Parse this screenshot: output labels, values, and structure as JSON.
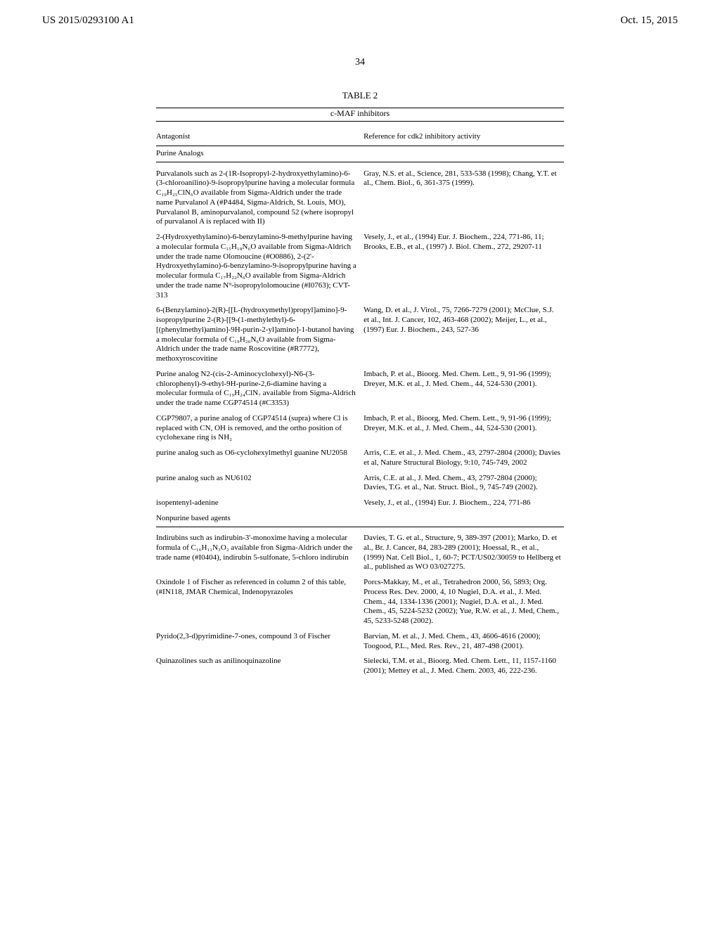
{
  "header": {
    "pub_number": "US 2015/0293100 A1",
    "date": "Oct. 15, 2015"
  },
  "page_number": "34",
  "table": {
    "label": "TABLE 2",
    "subtitle": "c-MAF inhibitors",
    "col_headers": {
      "antagonist": "Antagonist",
      "reference": "Reference for cdk2 inhibitory activity"
    },
    "sections": [
      {
        "title": "Purine Analogs",
        "rows": [
          {
            "a": "Purvalanols such as 2-(1R-Isopropyl-2-hydroxyethylamino)-6-(3-chloroanilino)-9-isopropylpurine having a molecular formula C₁₉H₂₅ClN₆O available from Sigma-Aldrich under the trade name Purvalanol A (#P4484, Sigma-Aldrich, St. Louis, MO), Purvalanol B, aminopurvalanol, compound 52 (where isopropyl of purvalanol A is replaced with II)",
            "r": "Gray, N.S. et al., Science, 281, 533-538 (1998); Chang, Y.T. et al., Chem. Biol., 6, 361-375 (1999)."
          },
          {
            "a": "2-(Hydroxyethylamino)-6-benzylamino-9-methylpurine having a molecular formula C₁₅H₁₈N₆O available from Sigma-Aldrich under the trade name Olomoucine (#O0886), 2-(2'-Hydroxyethylamino)-6-benzylamino-9-isopropylpurine having a molecular formula C₁₇H₂₂N₆O available from Sigma-Aldrich under the trade name N⁹-isopropylolomoucine (#I0763); CVT-313",
            "r": "Vesely, J., et al., (1994) Eur. J. Biochem., 224, 771-86, 11; Brooks, E.B., et al., (1997) J. Biol. Chem., 272, 29207-11"
          },
          {
            "a": "6-(Benzylamino)-2(R)-[[L-(hydroxymethyl)propyl]amino]-9-isopropylpurine 2-(R)-[[9-(1-methylethyl)-6-[(phenylmethyl)amino]-9H-purin-2-yl]amino]-1-butanol having a molecular formula of C₁₉H₂₆N₆O available from Sigma-Aldrich under the trade name Roscovitine (#R7772), methoxyroscovitine",
            "r": "Wang, D. et al., J. Virol., 75, 7266-7279 (2001); McClue, S.J. et al., Int. J. Cancer, 102, 463-468 (2002); Meijer, L., et al., (1997) Eur. J. Biochem., 243, 527-36"
          },
          {
            "a": "Purine analog N2-(cis-2-Aminocyclohexyl)-N6-(3-chlorophenyl)-9-ethyl-9H-purine-2,6-diamine having a molecular formula of C₁₉H₂₄ClN₇ available from Sigma-Aldrich under the trade name CGP74514 (#C3353)",
            "r": "Imbach, P. et al., Bioorg. Med. Chem. Lett., 9, 91-96 (1999); Dreyer, M.K. et al., J. Med. Chem., 44, 524-530 (2001)."
          },
          {
            "a": "CGP79807, a purine analog of CGP74514 (supra) where Cl is replaced with CN, OH is removed, and the ortho position of cyclohexane ring is NH₂",
            "r": "Imbach, P. et al., Bioorg, Med. Chem. Lett., 9, 91-96 (1999); Dreyer, M.K. et al., J. Med. Chem., 44, 524-530 (2001)."
          },
          {
            "a": "purine analog such as O6-cyclohexylmethyl guanine NU2058",
            "r": "Arris, C.E. et al., J. Med. Chem., 43, 2797-2804 (2000); Davies et al, Nature Structural Biology, 9:10, 745-749, 2002"
          },
          {
            "a": "purine analog such as NU6102",
            "r": "Arris, C.E. at al., J. Med. Chem., 43, 2797-2804 (2000); Davies, T.G. et al., Nat. Struct. Biol., 9, 745-749 (2002)."
          },
          {
            "a": "isopentenyl-adenine",
            "r": "Vesely, J., et al., (1994) Eur. J. Biochem., 224, 771-86"
          }
        ]
      },
      {
        "title": "Nonpurine based agents",
        "rows": [
          {
            "a": "Indirubins such as indirubin-3'-monoxime having a molecular formula of C₁₆H₁₁N₃O₂ available fron Sigma-Aldrich under the trade name (#I0404), indirubin 5-sulfonate, 5-chloro indirubin",
            "r": "Davies, T. G. et al., Structure, 9, 389-397 (2001); Marko, D. et al., Br. J. Cancer, 84, 283-289 (2001); Hoessal, R., et al., (1999) Nat. Cell Biol., 1, 60-7; PCT/US02/30059 to Hellberg et al., published as WO 03/027275."
          },
          {
            "a": "Oxindole 1 of Fischer as referenced in column 2 of this table, (#IN118, JMAR Chemical, Indenopyrazoles",
            "r": "Porcs-Makkay, M., et al., Tetrahedron 2000, 56, 5893; Org. Process Res. Dev. 2000, 4, 10 Nugiel, D.A. et al., J. Med. Chem., 44, 1334-1336 (2001); Nugiel, D.A. et al., J. Med. Chem., 45, 5224-5232 (2002); Yue, R.W. et al., J. Med, Chem., 45, 5233-5248 (2002)."
          },
          {
            "a": "Pyrido(2,3-d)pyrimidine-7-ones, compound 3 of Fischer",
            "r": "Barvian, M. et al., J. Med. Chem., 43, 4606-4616 (2000); Toogood, P.L., Med. Res. Rev., 21, 487-498 (2001)."
          },
          {
            "a": "Quinazolines such as anilinoquinazoline",
            "r": "Sielecki, T.M. et al., Bioorg. Med. Chem. Lett., 11, 1157-1160 (2001); Mettey et al., J. Med. Chem. 2003, 46, 222-236."
          }
        ]
      }
    ]
  }
}
